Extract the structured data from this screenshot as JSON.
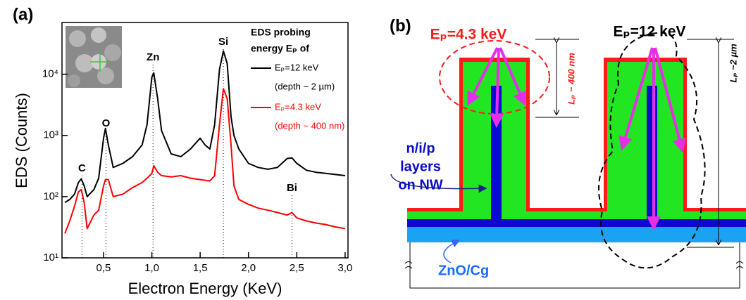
{
  "chart_data": {
    "type": "line",
    "panel_label": "(a)",
    "y_scale": "log",
    "xlabel": "Electron Energy (KeV)",
    "ylabel": "EDS (Counts)",
    "legend_title": [
      "EDS probing",
      "energy Eₚ of"
    ],
    "x": [
      0.1,
      0.15,
      0.2,
      0.24,
      0.27,
      0.3,
      0.33,
      0.4,
      0.45,
      0.5,
      0.52,
      0.55,
      0.6,
      0.7,
      0.8,
      0.9,
      0.95,
      1.0,
      1.02,
      1.06,
      1.1,
      1.2,
      1.3,
      1.4,
      1.5,
      1.55,
      1.6,
      1.65,
      1.7,
      1.74,
      1.78,
      1.82,
      1.85,
      1.9,
      2.0,
      2.1,
      2.2,
      2.3,
      2.4,
      2.45,
      2.5,
      2.6,
      2.7,
      2.8,
      2.9,
      3.0
    ],
    "series": [
      {
        "name": "Eₚ=12 keV",
        "note": "(depth ~ 2 µm)",
        "color": "#000000",
        "values": [
          80,
          90,
          110,
          170,
          195,
          150,
          100,
          130,
          200,
          900,
          1300,
          700,
          300,
          350,
          450,
          700,
          1500,
          9000,
          10500,
          4000,
          1200,
          500,
          450,
          600,
          900,
          700,
          600,
          1500,
          12000,
          24000,
          15000,
          2000,
          1000,
          600,
          350,
          300,
          280,
          300,
          420,
          430,
          350,
          270,
          250,
          240,
          230,
          220
        ]
      },
      {
        "name": "Eₚ=4.3 keV",
        "note": "(depth ~ 400 nm)",
        "color": "#ff0000",
        "values": [
          25,
          40,
          70,
          120,
          130,
          80,
          30,
          50,
          60,
          150,
          190,
          190,
          100,
          110,
          140,
          170,
          200,
          240,
          320,
          250,
          220,
          210,
          220,
          200,
          190,
          185,
          180,
          220,
          1500,
          5800,
          4000,
          700,
          150,
          90,
          75,
          65,
          60,
          55,
          50,
          55,
          45,
          40,
          37,
          35,
          32,
          30
        ]
      }
    ],
    "peaks": [
      {
        "label": "C",
        "x": 0.277
      },
      {
        "label": "O",
        "x": 0.525
      },
      {
        "label": "Zn",
        "x": 1.012
      },
      {
        "label": "Si",
        "x": 1.74
      },
      {
        "label": "Bi",
        "x": 2.45
      }
    ],
    "xlim": [
      0.07,
      3.03
    ],
    "xticks": [
      {
        "value": 0.5,
        "label": "0,5"
      },
      {
        "value": 1.0,
        "label": "1,0"
      },
      {
        "value": 1.5,
        "label": "1,5"
      },
      {
        "value": 2.0,
        "label": "2,0"
      },
      {
        "value": 2.5,
        "label": "2,5"
      },
      {
        "value": 3.0,
        "label": "3,0"
      }
    ],
    "ylim": [
      10,
      70000
    ],
    "yticks": [
      {
        "value": 10,
        "label": "10¹"
      },
      {
        "value": 100,
        "label": "10²"
      },
      {
        "value": 1000,
        "label": "10³"
      },
      {
        "value": 10000,
        "label": "10⁴"
      }
    ]
  },
  "diagram": {
    "label": "(b)",
    "beam_low": "Eₚ=4.3 keV",
    "beam_high": "Eₚ=12 keV",
    "depth_low": "Lₚ ~ 400 nm",
    "depth_high": "Lₚ ~2 µm",
    "layers": [
      "n/i/p",
      "layers",
      "on NW"
    ],
    "substrate": "ZnO/Cg"
  }
}
